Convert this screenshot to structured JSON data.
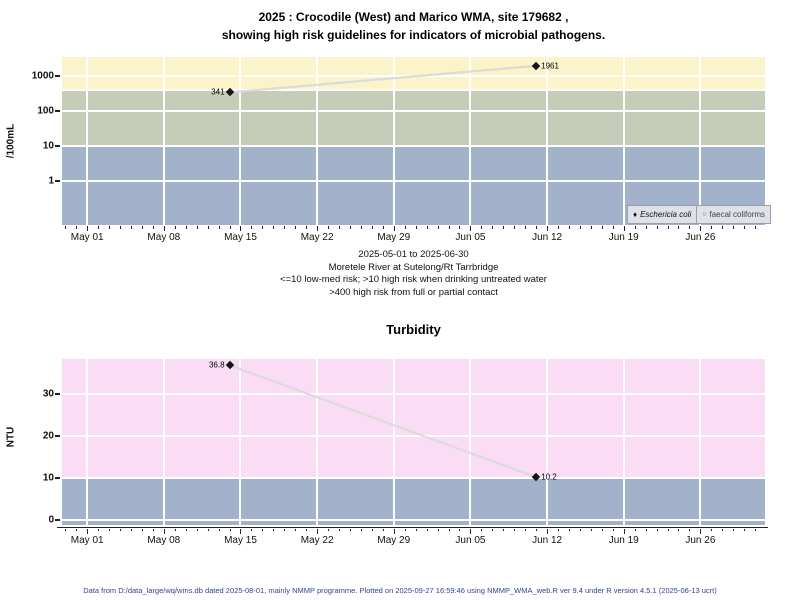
{
  "colors": {
    "band_high_yellow": "#FBF3C9",
    "band_mid_green": "#C5CCB8",
    "band_low_blue": "#A2B2CB",
    "band_turb_pink": "#FBDCF5",
    "grid_white": "#FFFFFF",
    "series_line": "#DBDBDB",
    "point_black": "#151515",
    "legend_bg": "#DEE1E8",
    "footer_blue": "#333F91"
  },
  "top_chart": {
    "title_line1": "2025 : Crocodile (West) and Marico WMA, site 179682 ,",
    "title_line2": "showing high risk guidelines for indicators of microbial pathogens.",
    "ylabel": "/100mL",
    "captions": [
      "2025-05-01 to 2025-06-30",
      "Moretele River at Sutelong/Rt Tarrbridge",
      "<=10 low-med risk; >10 high risk when drinking untreated water",
      ">400 high risk from full or partial contact"
    ],
    "legend": [
      {
        "symbol": "♦",
        "label": "Eschericia coli"
      },
      {
        "symbol": "○",
        "label": "faecal coliforms"
      }
    ]
  },
  "bottom_chart": {
    "title": "Turbidity",
    "ylabel": "NTU"
  },
  "footer": "Data from D:/data_large/wq/wms.db dated 2025-08-01, mainly NMMP programme. Plotted on 2025-09-27 16:59:46 using NMMP_WMA_web.R ver 9.4 under R version 4.5.1 (2025-06-13 ucrt)",
  "chart_data": [
    {
      "type": "line",
      "title": "2025 : Crocodile (West) and Marico WMA, site 179682 , showing high risk guidelines for indicators of microbial pathogens.",
      "ylabel": "/100mL",
      "yscale": "log",
      "yticks": [
        1,
        10,
        100,
        1000
      ],
      "gridline_values": [
        1,
        10,
        100,
        400,
        1000
      ],
      "ylim_log": [
        -1.26,
        3.544
      ],
      "x_start": "2025-05-01",
      "x_end": "2025-06-30",
      "x_domain_days": [
        -2.3,
        61.9
      ],
      "xticks": [
        "May 01",
        "May 08",
        "May 15",
        "May 22",
        "May 29",
        "Jun 05",
        "Jun 12",
        "Jun 19",
        "Jun 26"
      ],
      "xtick_day_offsets": [
        0,
        7,
        14,
        21,
        28,
        35,
        42,
        49,
        56
      ],
      "axis_line": false,
      "bands": [
        {
          "from": 400,
          "to": null,
          "color_key": "band_high_yellow",
          "meaning": ">400 high risk from full or partial contact"
        },
        {
          "from": 10,
          "to": 400,
          "color_key": "band_mid_green",
          "meaning": ">10 high risk when drinking untreated water"
        },
        {
          "from": null,
          "to": 10,
          "color_key": "band_low_blue",
          "meaning": "<=10 low-med risk"
        }
      ],
      "legend_entries": [
        "Eschericia coli",
        "faecal coliforms"
      ],
      "series": [
        {
          "name": "Eschericia coli",
          "symbol": "diamond",
          "points": [
            {
              "date": "2025-05-14",
              "day_offset": 13,
              "value": 341,
              "label": "341",
              "label_side": "left"
            },
            {
              "date": "2025-06-11",
              "day_offset": 41,
              "value": 1961,
              "label": "1961",
              "label_side": "right"
            }
          ]
        }
      ]
    },
    {
      "type": "line",
      "title": "Turbidity",
      "ylabel": "NTU",
      "yscale": "linear",
      "yticks": [
        0,
        10,
        20,
        30
      ],
      "gridline_values": [
        0,
        10,
        20,
        30
      ],
      "ylim": [
        -1.2,
        38.3
      ],
      "x_start": "2025-05-01",
      "x_end": "2025-06-30",
      "x_domain_days": [
        -2.3,
        61.9
      ],
      "xticks": [
        "May 01",
        "May 08",
        "May 15",
        "May 22",
        "May 29",
        "Jun 05",
        "Jun 12",
        "Jun 19",
        "Jun 26"
      ],
      "xtick_day_offsets": [
        0,
        7,
        14,
        21,
        28,
        35,
        42,
        49,
        56
      ],
      "axis_line": true,
      "bands": [
        {
          "from": 10,
          "to": null,
          "color_key": "band_turb_pink"
        },
        {
          "from": null,
          "to": 10,
          "color_key": "band_low_blue"
        }
      ],
      "series": [
        {
          "name": "Turbidity",
          "symbol": "diamond",
          "points": [
            {
              "date": "2025-05-14",
              "day_offset": 13,
              "value": 36.8,
              "label": "36.8",
              "label_side": "left"
            },
            {
              "date": "2025-06-11",
              "day_offset": 41,
              "value": 10.2,
              "label": "10.2",
              "label_side": "right"
            }
          ]
        }
      ]
    }
  ]
}
